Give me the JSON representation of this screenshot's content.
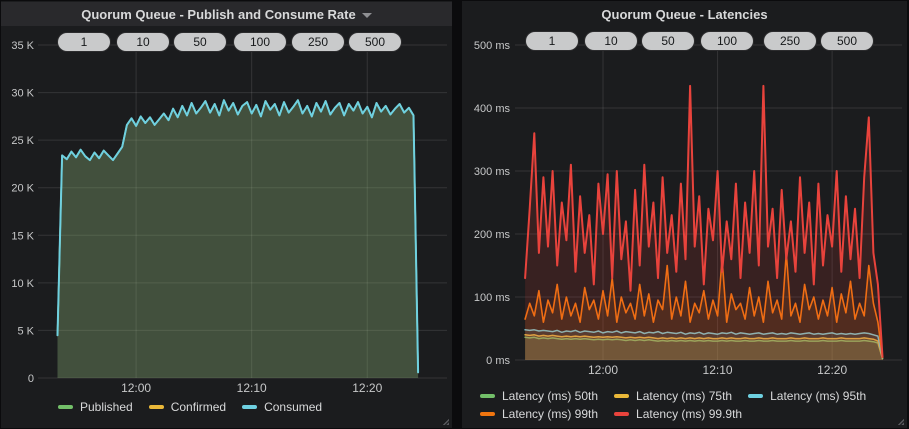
{
  "left_panel": {
    "title": "Quorum Queue - Publish and Consume Rate",
    "pills": [
      "1",
      "10",
      "50",
      "100",
      "250",
      "500"
    ]
  },
  "right_panel": {
    "title": "Quorum Queue - Latencies",
    "pills": [
      "1",
      "10",
      "50",
      "100",
      "250",
      "500"
    ]
  },
  "colors": {
    "green": "#73BF69",
    "yellow": "#EAB839",
    "cyan": "#6ED0E0",
    "orange": "#F0750F",
    "red": "#E8433C",
    "panel_bg": "#1b1c1e",
    "grid": "rgba(255,255,255,0.11)",
    "axis_text": "#c7c8c9"
  },
  "chart_data": [
    {
      "type": "area",
      "title": "Quorum Queue - Publish and Consume Rate",
      "x_unit": "minutes after 11:50",
      "t_start": 3.2,
      "t_step": 0.4,
      "xlim": [
        2.55,
        36.9
      ],
      "ylim": [
        0,
        35
      ],
      "y_unit": "K msg/s",
      "grid": true,
      "yticks": [
        {
          "v": 0,
          "label": "0"
        },
        {
          "v": 5,
          "label": "5 K"
        },
        {
          "v": 10,
          "label": "10 K"
        },
        {
          "v": 15,
          "label": "15 K"
        },
        {
          "v": 20,
          "label": "20 K"
        },
        {
          "v": 25,
          "label": "25 K"
        },
        {
          "v": 30,
          "label": "30 K"
        },
        {
          "v": 35,
          "label": "35 K"
        }
      ],
      "xticks": [
        {
          "t": 10,
          "label": "12:00"
        },
        {
          "t": 20,
          "label": "12:10"
        },
        {
          "t": 30,
          "label": "12:20"
        }
      ],
      "legend_position": "bottom",
      "series": [
        {
          "name": "Published",
          "color": "#73BF69",
          "width": 1.6,
          "fill_opacity": 0.15,
          "values": [
            4.5,
            23.4,
            23.0,
            23.8,
            23.2,
            24.0,
            23.3,
            22.9,
            23.7,
            23.1,
            23.9,
            23.4,
            22.9,
            23.6,
            24.3,
            26.6,
            27.3,
            26.5,
            27.5,
            26.8,
            27.4,
            26.6,
            27.2,
            27.8,
            27.1,
            28.3,
            27.4,
            28.6,
            27.6,
            28.9,
            27.8,
            28.4,
            29.1,
            27.9,
            28.8,
            27.6,
            29.2,
            28.1,
            28.9,
            27.7,
            28.6,
            29.0,
            27.8,
            28.7,
            27.5,
            29.1,
            28.2,
            28.8,
            27.6,
            29.0,
            27.9,
            28.5,
            29.2,
            27.8,
            28.6,
            27.5,
            28.9,
            28.0,
            29.1,
            27.7,
            28.4,
            28.9,
            27.6,
            28.8,
            28.1,
            29.0,
            27.8,
            28.5,
            27.4,
            28.9,
            28.0,
            28.6,
            27.7,
            28.3,
            28.8,
            27.9,
            28.4,
            27.6,
            0.6
          ]
        },
        {
          "name": "Confirmed",
          "color": "#EAB839",
          "width": 1.6,
          "fill_opacity": 0.12,
          "values": [
            4.5,
            23.4,
            23.0,
            23.8,
            23.2,
            24.0,
            23.3,
            22.9,
            23.7,
            23.1,
            23.9,
            23.4,
            22.9,
            23.6,
            24.3,
            26.6,
            27.3,
            26.5,
            27.5,
            26.8,
            27.4,
            26.6,
            27.2,
            27.8,
            27.1,
            28.3,
            27.4,
            28.6,
            27.6,
            28.9,
            27.8,
            28.4,
            29.1,
            27.9,
            28.8,
            27.6,
            29.2,
            28.1,
            28.9,
            27.7,
            28.6,
            29.0,
            27.8,
            28.7,
            27.5,
            29.1,
            28.2,
            28.8,
            27.6,
            29.0,
            27.9,
            28.5,
            29.2,
            27.8,
            28.6,
            27.5,
            28.9,
            28.0,
            29.1,
            27.7,
            28.4,
            28.9,
            27.6,
            28.8,
            28.1,
            29.0,
            27.8,
            28.5,
            27.4,
            28.9,
            28.0,
            28.6,
            27.7,
            28.3,
            28.8,
            27.9,
            28.4,
            27.6,
            0.6
          ]
        },
        {
          "name": "Consumed",
          "color": "#6ED0E0",
          "width": 2,
          "fill_opacity": 0.1,
          "values": [
            4.5,
            23.4,
            23.0,
            23.8,
            23.2,
            24.0,
            23.3,
            22.9,
            23.7,
            23.1,
            23.9,
            23.4,
            22.9,
            23.6,
            24.3,
            26.6,
            27.3,
            26.5,
            27.5,
            26.8,
            27.4,
            26.6,
            27.2,
            27.8,
            27.1,
            28.3,
            27.4,
            28.6,
            27.6,
            28.9,
            27.8,
            28.4,
            29.1,
            27.9,
            28.8,
            27.6,
            29.2,
            28.1,
            28.9,
            27.7,
            28.6,
            29.0,
            27.8,
            28.7,
            27.5,
            29.1,
            28.2,
            28.8,
            27.6,
            29.0,
            27.9,
            28.5,
            29.2,
            27.8,
            28.6,
            27.5,
            28.9,
            28.0,
            29.1,
            27.7,
            28.4,
            28.9,
            27.6,
            28.8,
            28.1,
            29.0,
            27.8,
            28.5,
            27.4,
            28.9,
            28.0,
            28.6,
            27.7,
            28.3,
            28.8,
            27.9,
            28.4,
            27.6,
            0.6
          ]
        }
      ]
    },
    {
      "type": "area",
      "title": "Quorum Queue - Latencies",
      "x_unit": "minutes after 11:50",
      "t_start": 3.2,
      "t_step": 0.4,
      "xlim": [
        3.19,
        36.1
      ],
      "ylim": [
        0,
        500
      ],
      "y_unit": "ms",
      "grid": true,
      "yticks": [
        {
          "v": 0,
          "label": "0 ms"
        },
        {
          "v": 100,
          "label": "100 ms"
        },
        {
          "v": 200,
          "label": "200 ms"
        },
        {
          "v": 300,
          "label": "300 ms"
        },
        {
          "v": 400,
          "label": "400 ms"
        },
        {
          "v": 500,
          "label": "500 ms"
        }
      ],
      "xticks": [
        {
          "t": 10,
          "label": "12:00"
        },
        {
          "t": 20,
          "label": "12:10"
        },
        {
          "t": 30,
          "label": "12:20"
        }
      ],
      "legend_position": "bottom",
      "series": [
        {
          "name": "Latency (ms) 50th",
          "color": "#73BF69",
          "width": 1.5,
          "fill_opacity": 0.15,
          "values": [
            36,
            35,
            36,
            34,
            35,
            34,
            35,
            34,
            33,
            34,
            33,
            34,
            33,
            34,
            33,
            32,
            33,
            32,
            33,
            32,
            33,
            32,
            31,
            32,
            31,
            32,
            31,
            32,
            31,
            30,
            31,
            30,
            31,
            30,
            31,
            30,
            31,
            30,
            31,
            30,
            31,
            30,
            30,
            31,
            30,
            31,
            30,
            30,
            31,
            30,
            30,
            31,
            30,
            30,
            31,
            30,
            30,
            30,
            31,
            30,
            30,
            31,
            30,
            30,
            30,
            31,
            30,
            30,
            30,
            31,
            30,
            30,
            30,
            30,
            31,
            30,
            29,
            27,
            2
          ]
        },
        {
          "name": "Latency (ms) 75th",
          "color": "#EAB839",
          "width": 1.5,
          "fill_opacity": 0.15,
          "values": [
            40,
            39,
            40,
            38,
            39,
            38,
            39,
            38,
            37,
            38,
            37,
            38,
            37,
            38,
            37,
            36,
            37,
            36,
            37,
            36,
            37,
            36,
            35,
            36,
            35,
            36,
            35,
            36,
            35,
            34,
            35,
            34,
            35,
            34,
            35,
            34,
            35,
            34,
            35,
            34,
            35,
            34,
            34,
            35,
            34,
            35,
            34,
            34,
            35,
            34,
            34,
            35,
            34,
            34,
            35,
            34,
            34,
            34,
            35,
            34,
            34,
            35,
            34,
            34,
            34,
            35,
            34,
            34,
            34,
            35,
            34,
            34,
            34,
            34,
            35,
            34,
            33,
            30,
            2
          ]
        },
        {
          "name": "Latency (ms) 95th",
          "color": "#6ED0E0",
          "width": 1.5,
          "fill_opacity": 0.12,
          "values": [
            48,
            47,
            48,
            46,
            47,
            46,
            45,
            47,
            44,
            46,
            45,
            47,
            44,
            46,
            45,
            44,
            46,
            43,
            45,
            44,
            46,
            43,
            45,
            44,
            43,
            45,
            42,
            44,
            43,
            45,
            42,
            44,
            43,
            42,
            44,
            41,
            43,
            42,
            44,
            41,
            43,
            42,
            41,
            43,
            42,
            44,
            41,
            43,
            42,
            41,
            42,
            43,
            41,
            42,
            43,
            41,
            42,
            41,
            43,
            42,
            41,
            42,
            43,
            41,
            42,
            41,
            42,
            43,
            41,
            42,
            41,
            42,
            41,
            42,
            43,
            42,
            40,
            38,
            3
          ]
        },
        {
          "name": "Latency (ms) 99th",
          "color": "#F0750F",
          "width": 1.6,
          "fill_opacity": 0.14,
          "values": [
            65,
            90,
            70,
            110,
            60,
            95,
            75,
            120,
            65,
            100,
            70,
            90,
            60,
            115,
            80,
            95,
            65,
            110,
            70,
            130,
            60,
            100,
            75,
            90,
            65,
            120,
            70,
            105,
            60,
            95,
            80,
            150,
            65,
            100,
            70,
            125,
            60,
            90,
            75,
            110,
            65,
            95,
            70,
            160,
            60,
            105,
            80,
            90,
            65,
            115,
            70,
            100,
            60,
            125,
            75,
            95,
            65,
            170,
            70,
            90,
            60,
            120,
            80,
            100,
            65,
            95,
            70,
            115,
            60,
            105,
            75,
            125,
            65,
            90,
            70,
            150,
            90,
            60,
            4
          ]
        },
        {
          "name": "Latency (ms) 99.9th",
          "color": "#E8433C",
          "width": 2,
          "fill_opacity": 0.14,
          "values": [
            130,
            240,
            360,
            170,
            290,
            180,
            300,
            150,
            250,
            190,
            310,
            140,
            260,
            170,
            230,
            120,
            280,
            200,
            295,
            130,
            300,
            160,
            220,
            110,
            270,
            150,
            310,
            180,
            250,
            130,
            290,
            170,
            230,
            140,
            280,
            160,
            435,
            180,
            260,
            120,
            240,
            190,
            300,
            140,
            220,
            160,
            280,
            130,
            250,
            170,
            300,
            150,
            435,
            180,
            240,
            130,
            270,
            160,
            220,
            140,
            290,
            170,
            250,
            120,
            280,
            150,
            230,
            180,
            300,
            140,
            260,
            160,
            240,
            130,
            290,
            385,
            170,
            120,
            5
          ]
        }
      ]
    }
  ]
}
